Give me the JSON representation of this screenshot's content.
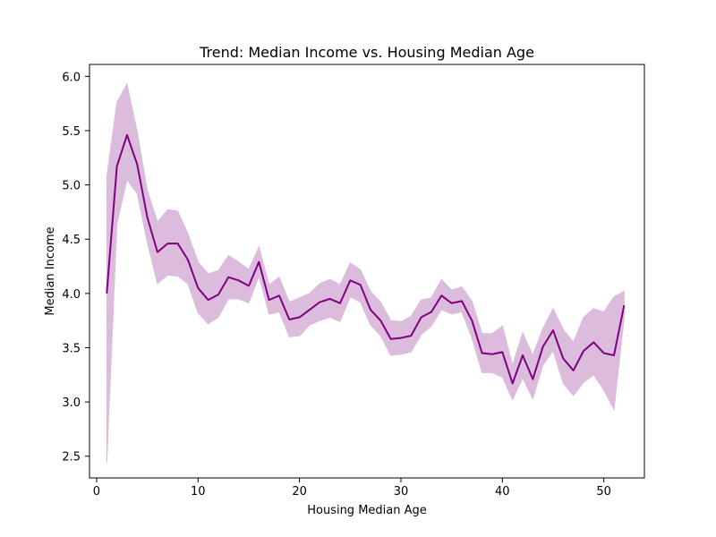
{
  "chart_data": {
    "type": "line",
    "title": "Trend: Median Income vs. Housing Median Age",
    "xlabel": "Housing Median Age",
    "ylabel": "Median Income",
    "xlim": [
      -0.7,
      54.0
    ],
    "ylim": [
      2.3,
      6.11
    ],
    "xticks": [
      0,
      10,
      20,
      30,
      40,
      50
    ],
    "yticks": [
      2.5,
      3.0,
      3.5,
      4.0,
      4.5,
      5.0,
      5.5,
      6.0
    ],
    "xtick_labels": [
      "0",
      "10",
      "20",
      "30",
      "40",
      "50"
    ],
    "ytick_labels": [
      "2.5",
      "3.0",
      "3.5",
      "4.0",
      "4.5",
      "5.0",
      "5.5",
      "6.0"
    ],
    "grid": false,
    "line_color": "#800080",
    "band_color": "#dcbcdc",
    "series": [
      {
        "x": [
          1,
          2,
          3,
          4,
          5,
          6,
          7,
          8,
          9,
          10,
          11,
          12,
          13,
          14,
          15,
          16,
          17,
          18,
          19,
          20,
          21,
          22,
          23,
          24,
          25,
          26,
          27,
          28,
          29,
          30,
          31,
          32,
          33,
          34,
          35,
          36,
          37,
          38,
          39,
          40,
          41,
          42,
          43,
          44,
          45,
          46,
          47,
          48,
          49,
          50,
          51,
          52
        ],
        "y": [
          4.0,
          5.17,
          5.46,
          5.19,
          4.7,
          4.38,
          4.46,
          4.46,
          4.31,
          4.05,
          3.94,
          3.99,
          4.15,
          4.12,
          4.07,
          4.29,
          3.94,
          3.98,
          3.76,
          3.78,
          3.85,
          3.92,
          3.95,
          3.91,
          4.12,
          4.08,
          3.85,
          3.75,
          3.58,
          3.59,
          3.61,
          3.78,
          3.83,
          3.98,
          3.91,
          3.93,
          3.75,
          3.45,
          3.44,
          3.46,
          3.17,
          3.43,
          3.21,
          3.51,
          3.66,
          3.4,
          3.29,
          3.47,
          3.55,
          3.45,
          3.43,
          3.89
        ],
        "ci_lower": [
          2.44,
          4.64,
          5.05,
          4.92,
          4.47,
          4.09,
          4.17,
          4.16,
          4.09,
          3.82,
          3.72,
          3.78,
          3.95,
          3.95,
          3.91,
          4.16,
          3.81,
          3.83,
          3.6,
          3.61,
          3.71,
          3.75,
          3.78,
          3.74,
          3.97,
          3.92,
          3.71,
          3.61,
          3.43,
          3.44,
          3.46,
          3.62,
          3.7,
          3.85,
          3.81,
          3.83,
          3.59,
          3.27,
          3.27,
          3.23,
          3.02,
          3.22,
          3.03,
          3.34,
          3.47,
          3.17,
          3.06,
          3.18,
          3.25,
          3.11,
          2.93,
          3.77
        ],
        "ci_upper": [
          5.07,
          5.76,
          5.93,
          5.49,
          4.95,
          4.66,
          4.77,
          4.76,
          4.55,
          4.29,
          4.18,
          4.21,
          4.35,
          4.29,
          4.22,
          4.43,
          4.08,
          4.15,
          3.92,
          3.96,
          4.0,
          4.09,
          4.13,
          4.08,
          4.28,
          4.22,
          4.02,
          3.92,
          3.75,
          3.74,
          3.79,
          3.94,
          3.96,
          4.13,
          4.03,
          4.06,
          3.93,
          3.63,
          3.63,
          3.7,
          3.34,
          3.64,
          3.43,
          3.68,
          3.86,
          3.67,
          3.55,
          3.78,
          3.86,
          3.83,
          3.97,
          4.02
        ]
      }
    ]
  }
}
